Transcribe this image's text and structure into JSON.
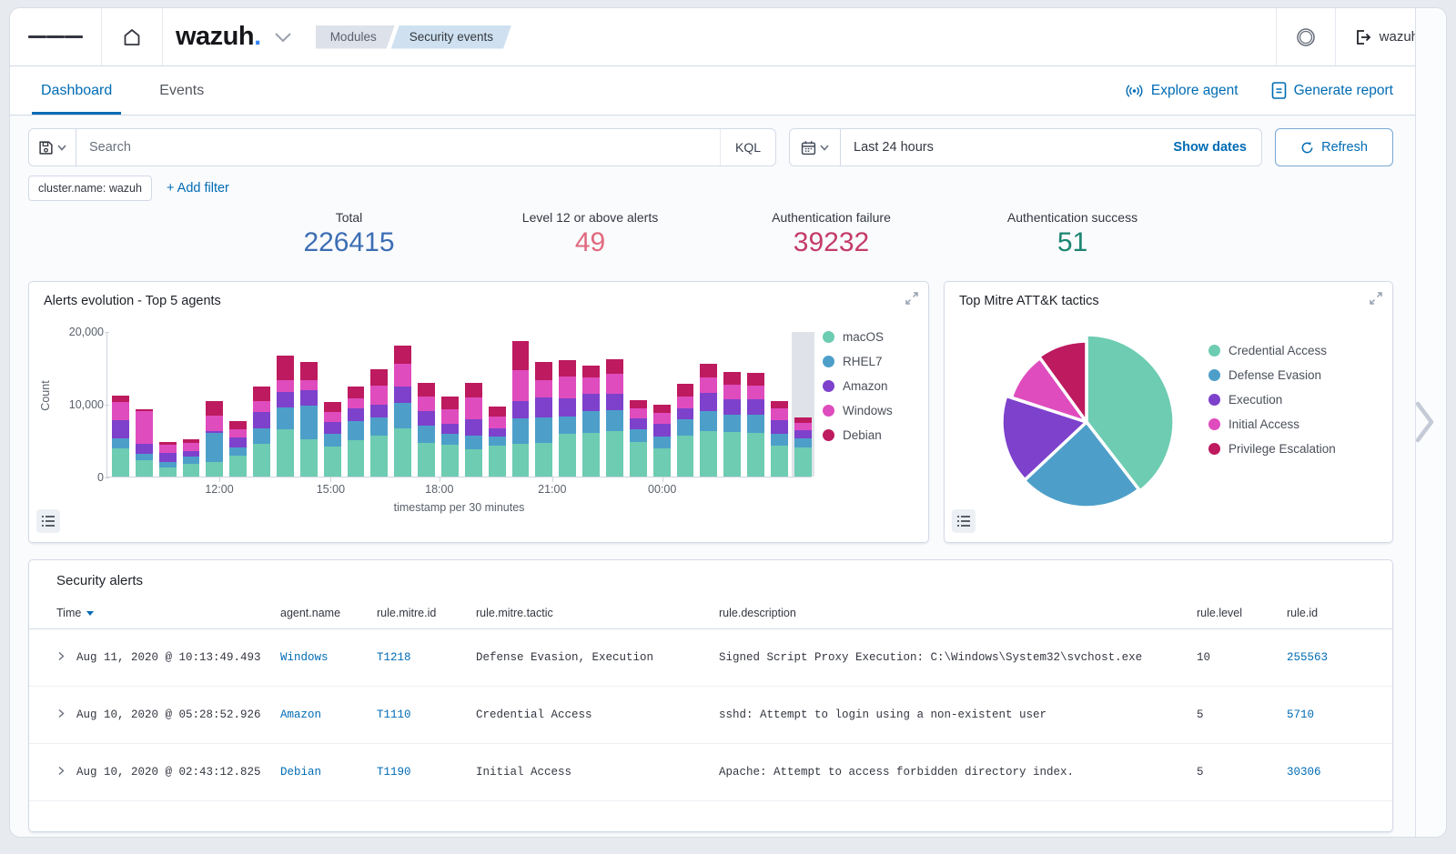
{
  "header": {
    "logo_text": "wazuh",
    "logo_dot": ".",
    "breadcrumbs": [
      {
        "label": "Modules"
      },
      {
        "label": "Security events"
      }
    ],
    "user": "wazuh"
  },
  "tabs": [
    {
      "label": "Dashboard"
    },
    {
      "label": "Events"
    }
  ],
  "actions": {
    "explore_agent": "Explore agent",
    "generate_report": "Generate report"
  },
  "toolbar": {
    "search_placeholder": "Search",
    "kql": "KQL",
    "time_range": "Last 24 hours",
    "show_dates": "Show dates",
    "refresh": "Refresh"
  },
  "filters": {
    "chip": "cluster.name: wazuh",
    "add": "+ Add filter"
  },
  "stats": [
    {
      "label": "Total",
      "value": "226415",
      "color": "#3c6eb4"
    },
    {
      "label": "Level 12 or above alerts",
      "value": "49",
      "color": "#e0697e"
    },
    {
      "label": "Authentication failure",
      "value": "39232",
      "color": "#c43c68"
    },
    {
      "label": "Authentication success",
      "value": "51",
      "color": "#1b8570"
    }
  ],
  "chart_data": [
    {
      "type": "bar",
      "title": "Alerts evolution - Top 5 agents",
      "xlabel": "timestamp per 30 minutes",
      "ylabel": "Count",
      "ylim": [
        0,
        20000
      ],
      "yticks": [
        0,
        10000,
        20000
      ],
      "ytick_labels": [
        "0",
        "10,000",
        "20,000"
      ],
      "xticks": [
        "12:00",
        "15:00",
        "18:00",
        "21:00",
        "00:00"
      ],
      "xtick_positions_pct": [
        16,
        31.8,
        47.2,
        63.2,
        78.8
      ],
      "stacked": true,
      "legend_position": "right",
      "grid": false,
      "highlight_last_bar": true,
      "series": [
        {
          "name": "macOS",
          "color": "#6dccb1",
          "values": [
            3900,
            2300,
            1200,
            1800,
            2000,
            2900,
            4500,
            6600,
            5100,
            4200,
            5000,
            5600,
            6700,
            4700,
            4400,
            3800,
            4300,
            4500,
            4600,
            5900,
            6100,
            6300,
            4800,
            3900,
            5600,
            6300,
            6200,
            6000,
            4300,
            4000
          ]
        },
        {
          "name": "RHEL7",
          "color": "#4d9fca",
          "values": [
            1400,
            900,
            800,
            1000,
            4000,
            1100,
            2200,
            2900,
            4700,
            1700,
            2700,
            2600,
            3500,
            2300,
            1500,
            1900,
            1300,
            3500,
            3600,
            2400,
            2900,
            2900,
            1700,
            1700,
            2300,
            2700,
            2400,
            2500,
            1600,
            1300
          ]
        },
        {
          "name": "Amazon",
          "color": "#7d41cc",
          "values": [
            2500,
            1300,
            1300,
            700,
            300,
            1400,
            2200,
            2200,
            2200,
            1700,
            1800,
            1700,
            2300,
            2100,
            1400,
            2200,
            1100,
            2500,
            2700,
            2500,
            2400,
            2300,
            1600,
            1700,
            1500,
            2600,
            2100,
            2200,
            1900,
            1100
          ]
        },
        {
          "name": "Windows",
          "color": "#df4cbe",
          "values": [
            2500,
            4500,
            1100,
            1200,
            2100,
            1200,
            1500,
            1600,
            1400,
            1300,
            1300,
            2700,
            3100,
            2000,
            2000,
            3000,
            1600,
            4200,
            2500,
            3000,
            2300,
            2700,
            1300,
            1500,
            1700,
            2100,
            2000,
            1900,
            1600,
            1000
          ]
        },
        {
          "name": "Debian",
          "color": "#bd1a5f",
          "values": [
            900,
            300,
            400,
            500,
            2000,
            1100,
            2000,
            3400,
            2400,
            1400,
            1700,
            2200,
            2500,
            1900,
            1800,
            2000,
            1400,
            4000,
            2500,
            2300,
            1700,
            2000,
            1200,
            1100,
            1700,
            1900,
            1800,
            1800,
            1100,
            800
          ]
        }
      ]
    },
    {
      "type": "pie",
      "title": "Top Mitre ATT&K tactics",
      "legend_position": "right",
      "slices": [
        {
          "label": "Credential Access",
          "pct": 39.5,
          "color": "#6dccb1",
          "r": 96
        },
        {
          "label": "Defense Evasion",
          "pct": 23.5,
          "color": "#4d9fca",
          "r": 94
        },
        {
          "label": "Execution",
          "pct": 17,
          "color": "#7d41cc",
          "r": 93
        },
        {
          "label": "Initial Access",
          "pct": 10,
          "color": "#df4cbe",
          "r": 87
        },
        {
          "label": "Privilege Escalation",
          "pct": 10,
          "color": "#bd1a5f",
          "r": 89
        }
      ]
    }
  ],
  "table": {
    "title": "Security alerts",
    "columns": [
      "Time",
      "agent.name",
      "rule.mitre.id",
      "rule.mitre.tactic",
      "rule.description",
      "rule.level",
      "rule.id"
    ],
    "rows": [
      {
        "time": "Aug 11, 2020 @ 10:13:49.493",
        "agent": "Windows",
        "mitre_id": "T1218",
        "tactic": "Defense Evasion, Execution",
        "description": "Signed Script Proxy Execution: C:\\Windows\\System32\\svchost.exe",
        "level": "10",
        "rule_id": "255563"
      },
      {
        "time": "Aug 10, 2020 @ 05:28:52.926",
        "agent": "Amazon",
        "mitre_id": "T1110",
        "tactic": "Credential Access",
        "description": "sshd: Attempt to login using a non-existent user",
        "level": "5",
        "rule_id": "5710"
      },
      {
        "time": "Aug 10, 2020 @ 02:43:12.825",
        "agent": "Debian",
        "mitre_id": "T1190",
        "tactic": "Initial Access",
        "description": "Apache: Attempt to access forbidden directory index.",
        "level": "5",
        "rule_id": "30306"
      }
    ]
  }
}
